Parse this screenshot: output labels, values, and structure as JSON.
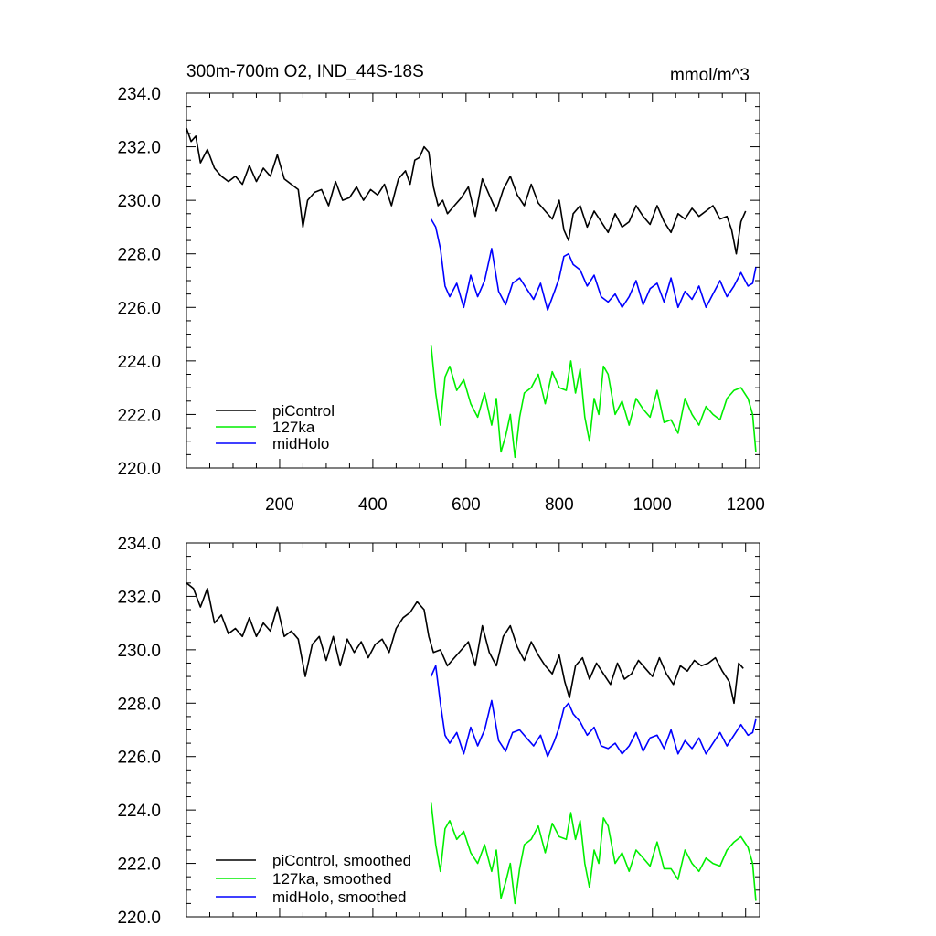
{
  "figure": {
    "title_left": "300m-700m O2, IND_44S-18S",
    "title_right": "mmol/m^3"
  },
  "chart_data": [
    {
      "type": "line",
      "panel": "top",
      "xlim": [
        0,
        1230
      ],
      "ylim": [
        220,
        234
      ],
      "yticks": [
        220,
        222,
        224,
        226,
        228,
        230,
        232,
        234
      ],
      "ytick_labels": [
        "220.0",
        "222.0",
        "224.0",
        "226.0",
        "228.0",
        "230.0",
        "232.0",
        "234.0"
      ],
      "xticks": [
        200,
        400,
        600,
        800,
        1000,
        1200
      ],
      "xtick_labels": [
        "200",
        "400",
        "600",
        "800",
        "1000",
        "1200"
      ],
      "grid": false,
      "legend_position": "bottom-left",
      "series": [
        {
          "name": "piControl",
          "color": "#000000",
          "x": [
            0,
            10,
            20,
            30,
            45,
            60,
            75,
            90,
            105,
            120,
            135,
            150,
            165,
            180,
            195,
            210,
            225,
            240,
            250,
            260,
            275,
            290,
            305,
            320,
            335,
            350,
            365,
            380,
            395,
            410,
            425,
            440,
            455,
            470,
            480,
            490,
            500,
            510,
            520,
            530,
            540,
            550,
            560,
            575,
            590,
            605,
            620,
            635,
            650,
            665,
            680,
            695,
            710,
            725,
            740,
            755,
            770,
            785,
            800,
            810,
            820,
            830,
            845,
            860,
            875,
            890,
            905,
            920,
            935,
            950,
            965,
            980,
            995,
            1010,
            1025,
            1040,
            1055,
            1070,
            1085,
            1100,
            1115,
            1130,
            1145,
            1160,
            1170,
            1180,
            1190,
            1200
          ],
          "values": [
            232.7,
            232.2,
            232.4,
            231.4,
            231.9,
            231.2,
            230.9,
            230.7,
            230.9,
            230.6,
            231.3,
            230.7,
            231.2,
            230.9,
            231.7,
            230.8,
            230.6,
            230.4,
            229.0,
            230.0,
            230.3,
            230.4,
            229.8,
            230.7,
            230.0,
            230.1,
            230.5,
            230.0,
            230.4,
            230.2,
            230.6,
            229.8,
            230.8,
            231.1,
            230.6,
            231.5,
            231.6,
            232.0,
            231.8,
            230.5,
            229.8,
            230.0,
            229.5,
            229.8,
            230.1,
            230.5,
            229.4,
            230.8,
            230.2,
            229.6,
            230.4,
            230.9,
            230.2,
            229.8,
            230.6,
            229.9,
            229.6,
            229.3,
            230.0,
            228.9,
            228.5,
            229.5,
            229.8,
            229.0,
            229.6,
            229.2,
            228.8,
            229.5,
            229.0,
            229.2,
            229.8,
            229.4,
            229.1,
            229.8,
            229.2,
            228.8,
            229.5,
            229.3,
            229.7,
            229.4,
            229.6,
            229.8,
            229.3,
            229.4,
            228.9,
            228.0,
            229.2,
            229.6
          ]
        },
        {
          "name": "127ka",
          "color": "#00ee00",
          "x": [
            525,
            535,
            545,
            555,
            565,
            580,
            595,
            610,
            625,
            640,
            655,
            665,
            675,
            685,
            695,
            705,
            715,
            725,
            740,
            755,
            770,
            785,
            800,
            815,
            825,
            835,
            845,
            855,
            865,
            875,
            885,
            895,
            905,
            920,
            935,
            950,
            965,
            980,
            995,
            1010,
            1025,
            1040,
            1055,
            1070,
            1085,
            1100,
            1115,
            1130,
            1145,
            1160,
            1175,
            1190,
            1205,
            1215,
            1222
          ],
          "values": [
            224.6,
            222.8,
            221.6,
            223.4,
            223.8,
            222.9,
            223.3,
            222.4,
            221.9,
            222.8,
            221.6,
            222.6,
            220.6,
            221.2,
            222.0,
            220.4,
            221.9,
            222.8,
            223.0,
            223.5,
            222.4,
            223.6,
            223.0,
            222.9,
            224.0,
            222.8,
            223.7,
            221.9,
            221.0,
            222.6,
            222.0,
            223.8,
            223.5,
            222.0,
            222.5,
            221.6,
            222.6,
            222.2,
            221.9,
            222.9,
            221.7,
            221.8,
            221.3,
            222.6,
            222.0,
            221.6,
            222.3,
            222.0,
            221.8,
            222.6,
            222.9,
            223.0,
            222.6,
            222.0,
            220.6
          ]
        },
        {
          "name": "midHolo",
          "color": "#0000ff",
          "x": [
            525,
            535,
            545,
            555,
            565,
            580,
            595,
            610,
            625,
            640,
            655,
            670,
            685,
            700,
            715,
            730,
            745,
            760,
            775,
            790,
            800,
            810,
            820,
            830,
            845,
            860,
            875,
            890,
            905,
            920,
            935,
            950,
            965,
            980,
            995,
            1010,
            1025,
            1040,
            1055,
            1070,
            1085,
            1100,
            1115,
            1130,
            1145,
            1160,
            1175,
            1190,
            1205,
            1215,
            1222
          ],
          "values": [
            229.3,
            229.0,
            228.2,
            226.8,
            226.4,
            226.9,
            226.0,
            227.2,
            226.4,
            227.0,
            228.2,
            226.6,
            226.1,
            226.9,
            227.1,
            226.7,
            226.3,
            226.9,
            225.9,
            226.6,
            227.1,
            227.9,
            228.0,
            227.6,
            227.4,
            226.8,
            227.2,
            226.4,
            226.2,
            226.5,
            226.0,
            226.4,
            227.0,
            226.1,
            226.7,
            226.9,
            226.2,
            227.1,
            226.0,
            226.6,
            226.3,
            226.8,
            226.0,
            226.5,
            227.0,
            226.4,
            226.8,
            227.3,
            226.8,
            226.9,
            227.5
          ]
        }
      ]
    },
    {
      "type": "line",
      "panel": "bottom",
      "xlim": [
        0,
        1230
      ],
      "ylim": [
        220,
        234
      ],
      "yticks": [
        220,
        222,
        224,
        226,
        228,
        230,
        232,
        234
      ],
      "ytick_labels": [
        "220.0",
        "222.0",
        "224.0",
        "226.0",
        "228.0",
        "230.0",
        "232.0",
        "234.0"
      ],
      "grid": false,
      "legend_position": "bottom-left",
      "series": [
        {
          "name": "piControl, smoothed",
          "color": "#000000",
          "x": [
            0,
            15,
            30,
            45,
            60,
            75,
            90,
            105,
            120,
            135,
            150,
            165,
            180,
            195,
            210,
            225,
            240,
            255,
            270,
            285,
            300,
            315,
            330,
            345,
            360,
            375,
            390,
            405,
            420,
            435,
            450,
            465,
            480,
            495,
            510,
            520,
            530,
            545,
            560,
            575,
            590,
            605,
            620,
            635,
            650,
            665,
            680,
            695,
            710,
            725,
            740,
            755,
            770,
            785,
            800,
            812,
            822,
            835,
            850,
            865,
            880,
            895,
            910,
            925,
            940,
            955,
            970,
            985,
            1000,
            1015,
            1030,
            1045,
            1060,
            1075,
            1090,
            1105,
            1120,
            1135,
            1150,
            1165,
            1175,
            1185,
            1195
          ],
          "values": [
            232.5,
            232.3,
            231.6,
            232.3,
            231.0,
            231.3,
            230.6,
            230.8,
            230.5,
            231.2,
            230.5,
            231.0,
            230.7,
            231.6,
            230.5,
            230.7,
            230.4,
            229.0,
            230.2,
            230.5,
            229.6,
            230.5,
            229.4,
            230.4,
            229.9,
            230.3,
            229.7,
            230.2,
            230.4,
            229.9,
            230.8,
            231.2,
            231.4,
            231.8,
            231.5,
            230.5,
            229.9,
            230.0,
            229.4,
            229.7,
            230.0,
            230.3,
            229.4,
            230.9,
            229.9,
            229.4,
            230.5,
            230.9,
            230.1,
            229.6,
            230.3,
            229.8,
            229.4,
            229.1,
            229.8,
            228.8,
            228.2,
            229.4,
            229.7,
            228.9,
            229.5,
            229.1,
            228.7,
            229.5,
            228.9,
            229.1,
            229.6,
            229.3,
            229.0,
            229.7,
            229.1,
            228.7,
            229.4,
            229.2,
            229.6,
            229.4,
            229.5,
            229.7,
            229.2,
            228.8,
            228.0,
            229.5,
            229.3
          ]
        },
        {
          "name": "127ka, smoothed",
          "color": "#00ee00",
          "x": [
            525,
            535,
            545,
            555,
            565,
            580,
            595,
            610,
            625,
            640,
            655,
            665,
            675,
            685,
            695,
            705,
            715,
            725,
            740,
            755,
            770,
            785,
            800,
            815,
            825,
            835,
            845,
            855,
            865,
            875,
            885,
            895,
            905,
            920,
            935,
            950,
            965,
            980,
            995,
            1010,
            1025,
            1040,
            1055,
            1070,
            1085,
            1100,
            1115,
            1130,
            1145,
            1160,
            1175,
            1190,
            1205,
            1215,
            1222
          ],
          "values": [
            224.3,
            222.7,
            221.7,
            223.3,
            223.6,
            222.9,
            223.2,
            222.4,
            222.0,
            222.7,
            221.7,
            222.5,
            220.7,
            221.3,
            222.0,
            220.5,
            221.8,
            222.7,
            222.9,
            223.4,
            222.4,
            223.5,
            223.0,
            222.9,
            223.9,
            222.9,
            223.6,
            222.0,
            221.1,
            222.5,
            222.0,
            223.7,
            223.4,
            222.0,
            222.4,
            221.7,
            222.5,
            222.2,
            221.9,
            222.8,
            221.8,
            221.8,
            221.4,
            222.5,
            222.0,
            221.7,
            222.2,
            222.0,
            221.9,
            222.5,
            222.8,
            223.0,
            222.6,
            222.0,
            220.6
          ]
        },
        {
          "name": "midHolo, smoothed",
          "color": "#0000ff",
          "x": [
            525,
            535,
            545,
            555,
            565,
            580,
            595,
            610,
            625,
            640,
            655,
            670,
            685,
            700,
            715,
            730,
            745,
            760,
            775,
            790,
            800,
            810,
            820,
            830,
            845,
            860,
            875,
            890,
            905,
            920,
            935,
            950,
            965,
            980,
            995,
            1010,
            1025,
            1040,
            1055,
            1070,
            1085,
            1100,
            1115,
            1130,
            1145,
            1160,
            1175,
            1190,
            1205,
            1215,
            1222
          ],
          "values": [
            229.0,
            229.4,
            228.0,
            226.8,
            226.5,
            226.9,
            226.1,
            227.1,
            226.4,
            227.0,
            228.1,
            226.6,
            226.2,
            226.9,
            227.0,
            226.7,
            226.4,
            226.8,
            226.0,
            226.6,
            227.1,
            227.8,
            228.0,
            227.6,
            227.3,
            226.8,
            227.1,
            226.4,
            226.3,
            226.5,
            226.1,
            226.4,
            226.9,
            226.2,
            226.7,
            226.8,
            226.3,
            227.0,
            226.1,
            226.6,
            226.3,
            226.7,
            226.1,
            226.5,
            226.9,
            226.4,
            226.8,
            227.2,
            226.8,
            226.9,
            227.4
          ]
        }
      ]
    }
  ]
}
